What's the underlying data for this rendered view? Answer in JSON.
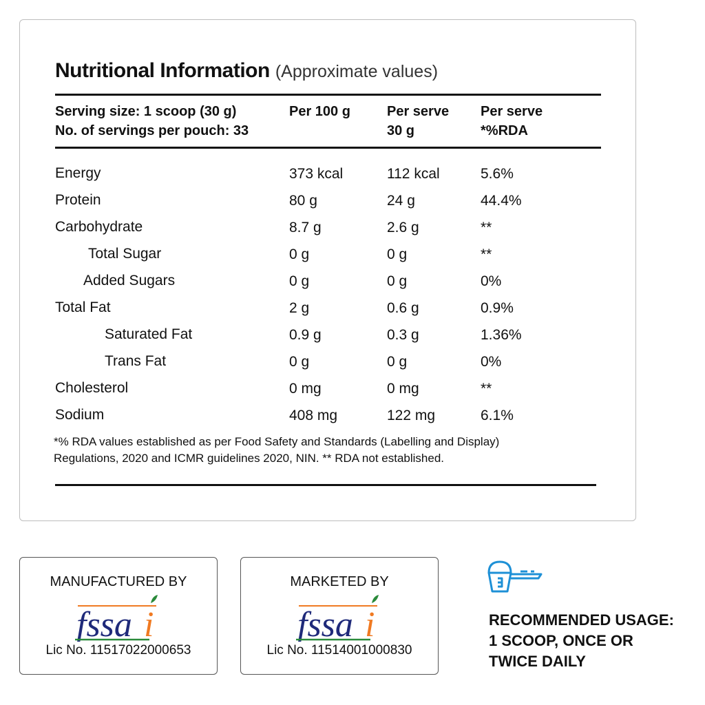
{
  "title": "Nutritional Information",
  "subtitle": "(Approximate values)",
  "header": {
    "col1_line1": "Serving size: 1 scoop (30 g)",
    "col1_line2": "No. of servings per pouch: 33",
    "col2": "Per 100 g",
    "col3_line1": "Per serve",
    "col3_line2": "30 g",
    "col4_line1": "Per serve",
    "col4_line2": "*%RDA"
  },
  "rows": [
    {
      "name": "Energy",
      "per100": "373 kcal",
      "perserve": "112 kcal",
      "rda": "5.6%"
    },
    {
      "name": "Protein",
      "per100": "80 g",
      "perserve": "24 g",
      "rda": "44.4%"
    },
    {
      "name": "Carbohydrate",
      "per100": "8.7 g",
      "perserve": "2.6 g",
      "rda": "**"
    },
    {
      "name": "Total Sugar",
      "per100": "0 g",
      "perserve": "0 g",
      "rda": "**"
    },
    {
      "name": "Added Sugars",
      "per100": "0 g",
      "perserve": "0 g",
      "rda": "0%"
    },
    {
      "name": "Total Fat",
      "per100": "2 g",
      "perserve": "0.6 g",
      "rda": "0.9%"
    },
    {
      "name": "Saturated Fat",
      "per100": "0.9 g",
      "perserve": "0.3 g",
      "rda": "1.36%"
    },
    {
      "name": "Trans Fat",
      "per100": "0 g",
      "perserve": "0 g",
      "rda": "0%"
    },
    {
      "name": "Cholesterol",
      "per100": "0 mg",
      "perserve": "0 mg",
      "rda": "**"
    },
    {
      "name": "Sodium",
      "per100": "408 mg",
      "perserve": "122 mg",
      "rda": "6.1%"
    }
  ],
  "footnote": {
    "line1": "*% RDA values established as per Food Safety and Standards (Labelling and Display)",
    "line2": "Regulations, 2020 and ICMR guidelines 2020, NIN. ** RDA not established."
  },
  "manufacturer": {
    "label": "MANUFACTURED BY",
    "logo": "fssai",
    "license": "Lic No. 11517022000653"
  },
  "marketer": {
    "label": "MARKETED BY",
    "logo": "fssai",
    "license": "Lic No. 11514001000830"
  },
  "usage": {
    "icon": "scoop-icon",
    "icon_color": "#1e90d6",
    "line1": "RECOMMENDED USAGE:",
    "line2": "1 SCOOP, ONCE OR",
    "line3": "TWICE DAILY"
  },
  "colors": {
    "fssai_blue": "#1f2a7a",
    "fssai_orange": "#f07a22",
    "fssai_green": "#2a8a3a"
  }
}
